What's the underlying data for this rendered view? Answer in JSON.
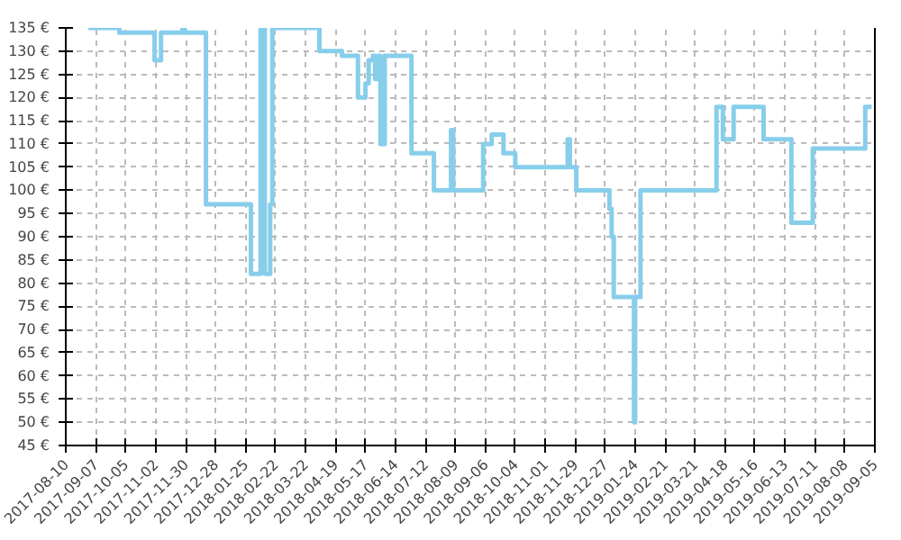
{
  "chart_data": {
    "type": "step",
    "color": "#87ceeb",
    "grid": true,
    "line_style": "solid",
    "marker": "none",
    "xlim": [
      "2017-08-10",
      "2019-09-05"
    ],
    "xticks": [
      "2017-08-10",
      "2017-09-07",
      "2017-10-05",
      "2017-11-02",
      "2017-11-30",
      "2017-12-28",
      "2018-01-25",
      "2018-02-22",
      "2018-03-22",
      "2018-04-19",
      "2018-05-17",
      "2018-06-14",
      "2018-07-12",
      "2018-08-09",
      "2018-09-06",
      "2018-10-04",
      "2018-11-01",
      "2018-11-29",
      "2018-12-27",
      "2019-01-24",
      "2019-02-21",
      "2019-03-21",
      "2019-04-18",
      "2019-05-16",
      "2019-06-13",
      "2019-07-11",
      "2019-08-08",
      "2019-09-05"
    ],
    "ylim": [
      45,
      135
    ],
    "yticks": [
      {
        "value": 45,
        "label": "45 €"
      },
      {
        "value": 50,
        "label": "50 €"
      },
      {
        "value": 55,
        "label": "55 €"
      },
      {
        "value": 60,
        "label": "60 €"
      },
      {
        "value": 65,
        "label": "65 €"
      },
      {
        "value": 70,
        "label": "70 €"
      },
      {
        "value": 75,
        "label": "75 €"
      },
      {
        "value": 80,
        "label": "80 €"
      },
      {
        "value": 85,
        "label": "85 €"
      },
      {
        "value": 90,
        "label": "90 €"
      },
      {
        "value": 95,
        "label": "95 €"
      },
      {
        "value": 100,
        "label": "100 €"
      },
      {
        "value": 105,
        "label": "105 €"
      },
      {
        "value": 110,
        "label": "110 €"
      },
      {
        "value": 115,
        "label": "115 €"
      },
      {
        "value": 120,
        "label": "120 €"
      },
      {
        "value": 125,
        "label": "125 €"
      },
      {
        "value": 130,
        "label": "130 €"
      },
      {
        "value": 135,
        "label": "135 €"
      }
    ],
    "x": [
      "2017-08-31",
      "2017-09-29",
      "2017-11-01",
      "2017-11-07",
      "2017-11-27",
      "2017-11-29",
      "2017-12-19",
      "2018-01-30",
      "2018-02-08",
      "2018-02-12",
      "2018-02-17",
      "2018-02-19",
      "2018-04-04",
      "2018-04-25",
      "2018-05-10",
      "2018-05-17",
      "2018-05-20",
      "2018-05-24",
      "2018-05-26",
      "2018-05-29",
      "2018-05-31",
      "2018-06-04",
      "2018-06-29",
      "2018-07-20",
      "2018-08-05",
      "2018-08-07",
      "2018-09-04",
      "2018-09-12",
      "2018-09-23",
      "2018-10-04",
      "2018-11-22",
      "2018-11-24",
      "2018-11-30",
      "2018-12-31",
      "2019-01-02",
      "2019-01-04",
      "2019-01-23",
      "2019-01-24",
      "2019-01-29",
      "2019-04-10",
      "2019-04-16",
      "2019-04-26",
      "2019-05-24",
      "2019-06-19",
      "2019-07-09",
      "2019-08-27",
      "2019-09-02"
    ],
    "values": [
      135,
      134,
      128,
      134,
      135,
      134,
      97,
      82,
      135,
      82,
      97,
      135,
      130,
      129,
      120,
      123,
      128,
      129,
      124,
      129,
      110,
      129,
      108,
      100,
      113,
      100,
      110,
      112,
      108,
      105,
      111,
      105,
      100,
      96,
      90,
      77,
      50,
      77,
      100,
      118,
      111,
      118,
      111,
      93,
      109,
      118,
      118
    ]
  }
}
